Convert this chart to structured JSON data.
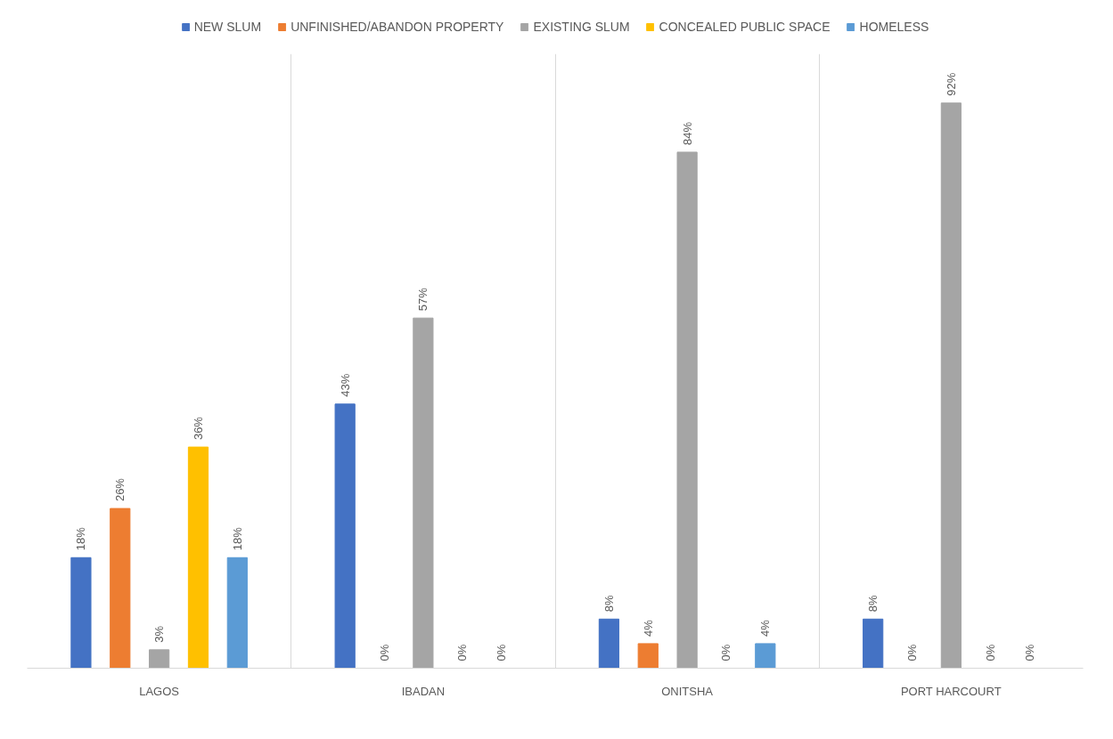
{
  "chart_data": {
    "type": "bar",
    "categories": [
      "LAGOS",
      "IBADAN",
      "ONITSHA",
      "PORT HARCOURT"
    ],
    "series": [
      {
        "name": "NEW SLUM",
        "color": "#4472c4",
        "values": [
          18,
          43,
          8,
          8
        ],
        "value_labels": [
          "18%",
          "43%",
          "8%",
          "8%"
        ]
      },
      {
        "name": "UNFINISHED/ABANDON PROPERTY",
        "color": "#ed7d31",
        "values": [
          26,
          0,
          4,
          0
        ],
        "value_labels": [
          "26%",
          "0%",
          "4%",
          "0%"
        ]
      },
      {
        "name": "EXISTING SLUM",
        "color": "#a5a5a5",
        "values": [
          3,
          57,
          84,
          92
        ],
        "value_labels": [
          "3%",
          "57%",
          "84%",
          "92%"
        ]
      },
      {
        "name": "CONCEALED PUBLIC SPACE",
        "color": "#ffc000",
        "values": [
          36,
          0,
          0,
          0
        ],
        "value_labels": [
          "36%",
          "0%",
          "0%",
          "0%"
        ]
      },
      {
        "name": "HOMELESS",
        "color": "#5b9bd5",
        "values": [
          18,
          0,
          4,
          0
        ],
        "value_labels": [
          "18%",
          "0%",
          "4%",
          "0%"
        ]
      }
    ],
    "ylim": [
      0,
      100
    ],
    "grid": "x",
    "legend": "top"
  }
}
